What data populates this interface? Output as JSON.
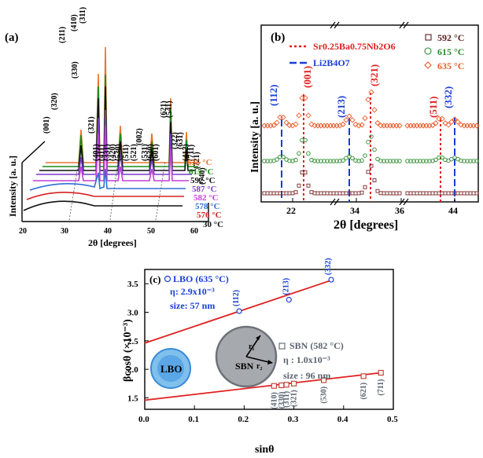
{
  "panel_a": {
    "label": "(a)",
    "xlabel": "2θ [degrees]",
    "ylabel": "Intensity [a. u.]",
    "xticks": [
      "20",
      "30",
      "40",
      "50",
      "60"
    ],
    "temperatures": [
      {
        "label": "635 °C",
        "color": "#e8762c"
      },
      {
        "label": "615 °C",
        "color": "#1a8a1a"
      },
      {
        "label": "592 °C",
        "color": "#111111"
      },
      {
        "label": "587 °C",
        "color": "#7a3cc8"
      },
      {
        "label": "582 °C",
        "color": "#c23fd6"
      },
      {
        "label": "578 °C",
        "color": "#2f6fd6"
      },
      {
        "label": "576 °C",
        "color": "#d62020"
      },
      {
        "label": "30 °C",
        "color": "#111111"
      }
    ],
    "peak_labels": [
      "(001)",
      "(320)",
      "(211)",
      "(410)",
      "(311)",
      "(330)",
      "(321)",
      "(401)",
      "(411)",
      "(331)",
      "(420)",
      "(530)",
      "(511)",
      "(521)",
      "(002)",
      "(531)",
      "(630)",
      "(601)",
      "(621)",
      "(541)",
      "(322)",
      "(631)",
      "(412)",
      "(711)",
      "(721)",
      "(740)"
    ]
  },
  "panel_b": {
    "label": "(b)",
    "ylabel": "Intensity [a. u.]",
    "xlabel": "2θ [degrees]",
    "xticks": [
      "22",
      "34",
      "36",
      "44"
    ],
    "legend_phases": [
      {
        "name": "Sr0.25Ba0.75Nb2O6",
        "color": "#e02020"
      },
      {
        "name": "Li2B4O7",
        "color": "#1a3fd6"
      }
    ],
    "legend_temps": [
      {
        "label": "592 °C",
        "color": "#5a2020"
      },
      {
        "label": "615 °C",
        "color": "#2a8a2a"
      },
      {
        "label": "635 °C",
        "color": "#e85a2a"
      }
    ],
    "peak_labels_lbo": [
      "(112)",
      "(213)",
      "(332)"
    ],
    "peak_labels_sbn": [
      "(001)",
      "(321)",
      "(511)"
    ]
  },
  "panel_c": {
    "label": "(c)",
    "ylabel": "βcosθ (×10⁻³)",
    "xlabel": "sinθ",
    "lbo_legend": {
      "name": "LBO (635 °C)",
      "eta": "η: 2.9x10⁻³",
      "size": "size: 57 nm"
    },
    "sbn_legend": {
      "name": "SBN (582 °C)",
      "eta": "η : 1.0x10⁻³",
      "size": "size : 96 nm"
    },
    "circle_lbo_label": "LBO",
    "circle_sbn_label": "SBN",
    "r1": "r₁",
    "r2": "r₂"
  },
  "chart_data": [
    {
      "type": "line",
      "panel": "a",
      "title": "",
      "xlabel": "2θ [degrees]",
      "ylabel": "Intensity [a. u.]",
      "xlim": [
        20,
        60
      ],
      "series": [
        {
          "name": "635 °C",
          "peaks_2theta": [
            22.7,
            26.5,
            28.7,
            31.2,
            32.3,
            35.6,
            37.8,
            40.5,
            45.2,
            46.5,
            50.0,
            51.4,
            53.3,
            54.6,
            56.4
          ]
        },
        {
          "name": "615 °C"
        },
        {
          "name": "592 °C"
        },
        {
          "name": "587 °C"
        },
        {
          "name": "582 °C"
        },
        {
          "name": "578 °C"
        },
        {
          "name": "576 °C"
        },
        {
          "name": "30 °C",
          "note": "amorphous hump near 30°"
        }
      ]
    },
    {
      "type": "scatter",
      "panel": "b",
      "xlabel": "2θ [degrees]",
      "ylabel": "Intensity [a. u.]",
      "series": [
        {
          "name": "592 °C",
          "peaks_2theta": [
            22.7,
            34.8
          ]
        },
        {
          "name": "615 °C",
          "peaks_2theta": [
            21.7,
            22.7,
            33.9,
            34.8,
            43.0,
            44.1
          ]
        },
        {
          "name": "635 °C",
          "peaks_2theta": [
            21.7,
            22.7,
            33.9,
            34.8,
            43.0,
            44.1
          ]
        }
      ],
      "reference_lines": {
        "SBN": [
          22.7,
          34.8,
          43.0
        ],
        "LBO": [
          21.7,
          33.9,
          44.1
        ]
      }
    },
    {
      "type": "scatter",
      "panel": "c",
      "xlabel": "sinθ",
      "ylabel": "βcosθ (×10⁻³)",
      "xlim": [
        0.0,
        0.5
      ],
      "ylim": [
        1.3,
        3.75
      ],
      "xticks": [
        0.0,
        0.1,
        0.2,
        0.3,
        0.4,
        0.5
      ],
      "yticks": [
        1.5,
        2.0,
        2.5,
        3.0,
        3.5
      ],
      "series": [
        {
          "name": "LBO (635 °C)",
          "x": [
            0.19,
            0.29,
            0.375
          ],
          "y": [
            3.02,
            3.22,
            3.57
          ],
          "labels": [
            "(112)",
            "(213)",
            "(332)"
          ],
          "fit": {
            "slope": 2.9,
            "intercept": 2.46
          }
        },
        {
          "name": "SBN (582 °C)",
          "x": [
            0.26,
            0.275,
            0.285,
            0.3,
            0.36,
            0.44,
            0.475
          ],
          "y": [
            1.71,
            1.72,
            1.73,
            1.75,
            1.81,
            1.88,
            1.94
          ],
          "labels": [
            "(410)",
            "(330)",
            "(311)",
            "(321)",
            "(530)",
            "(621)",
            "(711)"
          ],
          "fit": {
            "slope": 1.0,
            "intercept": 1.46
          }
        }
      ]
    }
  ]
}
